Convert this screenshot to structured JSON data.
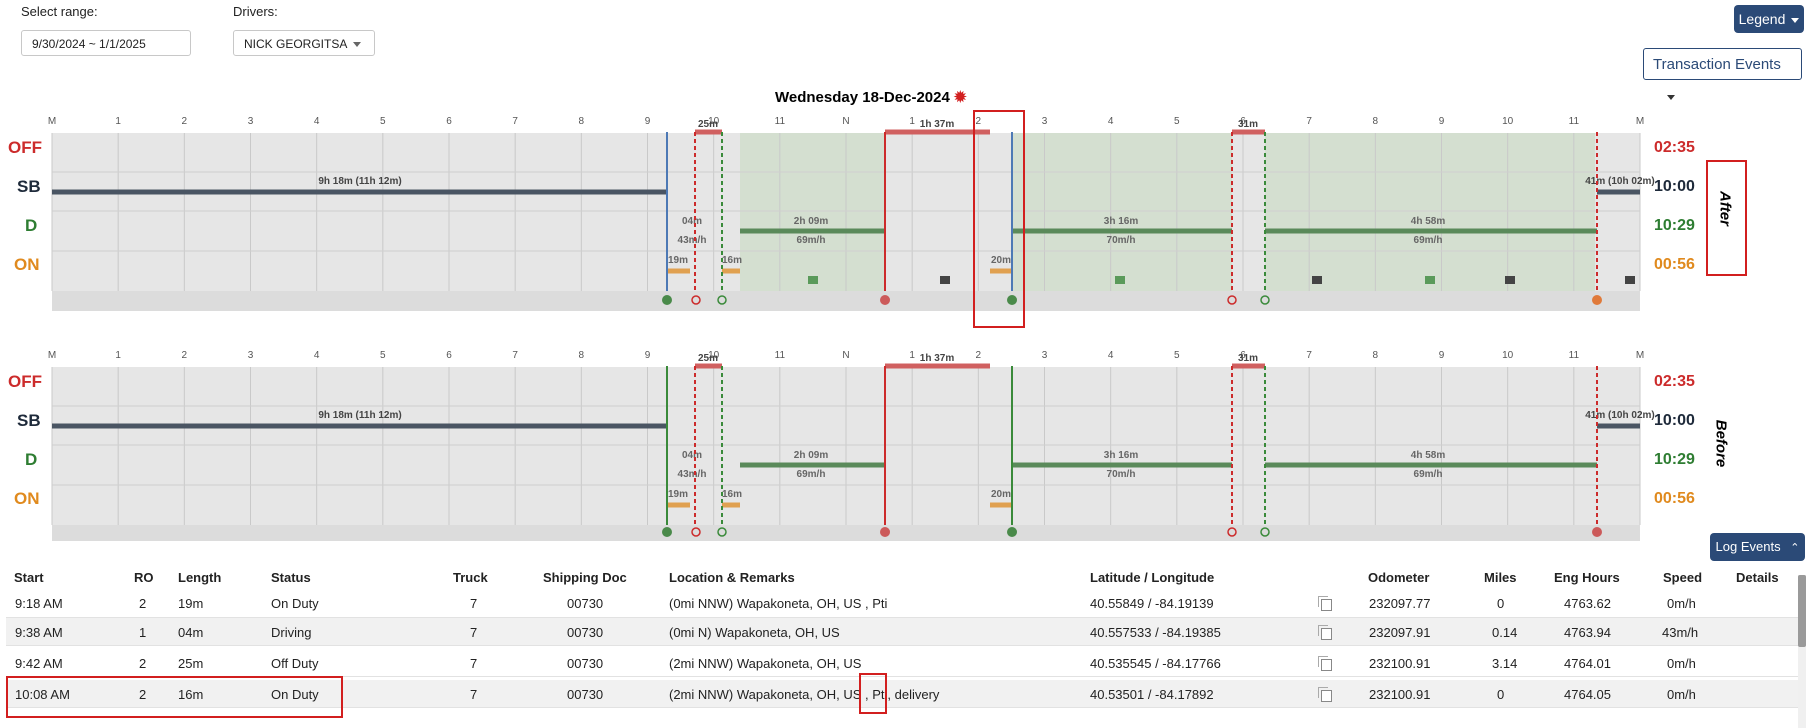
{
  "filters": {
    "range_label": "Select range:",
    "range_value": "9/30/2024 ~ 1/1/2025",
    "drivers_label": "Drivers:",
    "driver_value": "NICK GEORGITSA"
  },
  "buttons": {
    "legend": "Legend",
    "transaction_events": "Transaction Events",
    "log_events": "Log Events"
  },
  "chart_title": "Wednesday 18-Dec-2024",
  "hours": [
    "M",
    "1",
    "2",
    "3",
    "4",
    "5",
    "6",
    "7",
    "8",
    "9",
    "10",
    "11",
    "N",
    "1",
    "2",
    "3",
    "4",
    "5",
    "6",
    "7",
    "8",
    "9",
    "10",
    "11",
    "M"
  ],
  "status_labels": [
    "OFF",
    "SB",
    "D",
    "ON"
  ],
  "totals": [
    "02:35",
    "10:00",
    "10:29",
    "00:56"
  ],
  "colors": {
    "off": "#cc2b2b",
    "sb": "#1e2a3a",
    "d": "#2e7d32",
    "on": "#e08a1e"
  },
  "panels": {
    "after": "After",
    "before": "Before"
  },
  "chart_labels": {
    "sb1": "9h 18m (11h 12m)",
    "sb2": "41m (10h 02m)",
    "off1": "25m",
    "off2": "1h 37m",
    "off3": "31m",
    "on1": "19m",
    "on2": "16m",
    "on3": "20m",
    "dr1": "04m",
    "dr1s": "43m/h",
    "dr2": "2h 09m",
    "dr2s": "69m/h",
    "dr3": "3h 16m",
    "dr3s": "70m/h",
    "dr4": "4h 58m",
    "dr4s": "69m/h"
  },
  "table": {
    "headers": [
      "Start",
      "RO",
      "Length",
      "Status",
      "Truck",
      "Shipping Doc",
      "Location & Remarks",
      "Latitude / Longitude",
      "Odometer",
      "Miles",
      "Eng Hours",
      "Speed",
      "Details"
    ],
    "rows": [
      {
        "start": "9:18 AM",
        "ro": "2",
        "length": "19m",
        "status": "On Duty",
        "truck": "7",
        "doc": "00730",
        "location": "(0mi NNW) Wapakoneta, OH, US , Pti",
        "latlng": "40.55849 / -84.19139",
        "odometer": "232097.77",
        "miles": "0",
        "eng": "4763.62",
        "speed": "0m/h"
      },
      {
        "start": "9:38 AM",
        "ro": "1",
        "length": "04m",
        "status": "Driving",
        "truck": "7",
        "doc": "00730",
        "location": "(0mi N) Wapakoneta, OH, US",
        "latlng": "40.557533 / -84.19385",
        "odometer": "232097.91",
        "miles": "0.14",
        "eng": "4763.94",
        "speed": "43m/h"
      },
      {
        "start": "9:42 AM",
        "ro": "2",
        "length": "25m",
        "status": "Off Duty",
        "truck": "7",
        "doc": "00730",
        "location": "(2mi NNW) Wapakoneta, OH, US",
        "latlng": "40.535545 / -84.17766",
        "odometer": "232100.91",
        "miles": "3.14",
        "eng": "4764.01",
        "speed": "0m/h"
      },
      {
        "start": "10:08 AM",
        "ro": "2",
        "length": "16m",
        "status": "On Duty",
        "truck": "7",
        "doc": "00730",
        "location": "(2mi NNW) Wapakoneta, OH, US , Pti, delivery",
        "latlng": "40.53501 / -84.17892",
        "odometer": "232100.91",
        "miles": "0",
        "eng": "4764.05",
        "speed": "0m/h"
      }
    ]
  }
}
